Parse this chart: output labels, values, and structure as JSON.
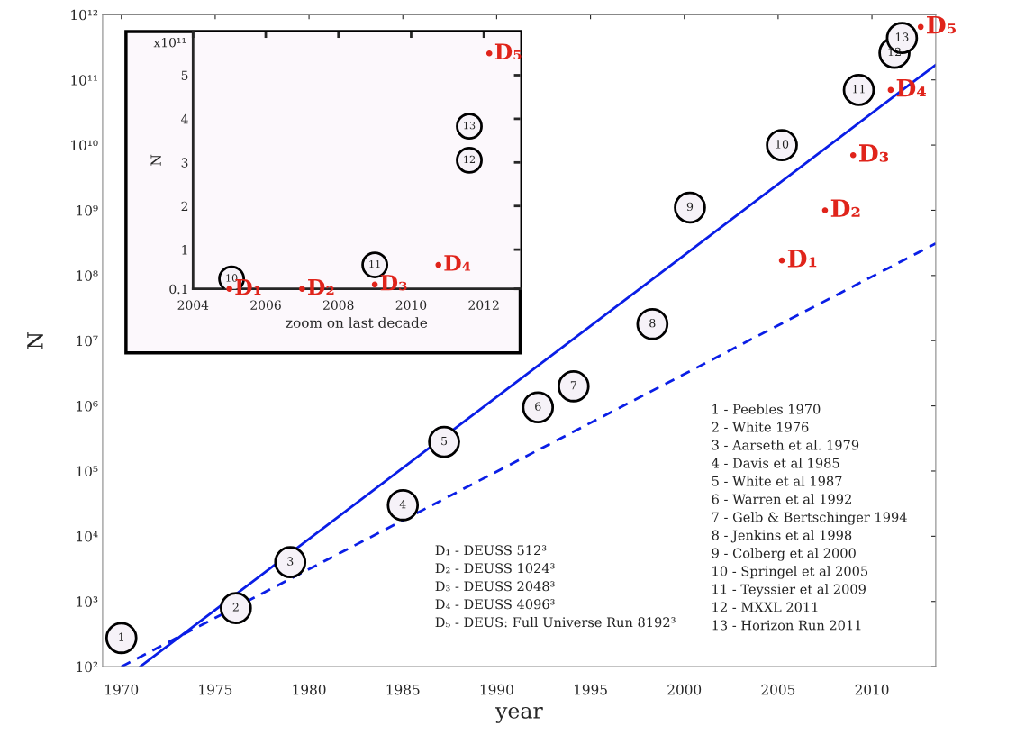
{
  "chart_data": [
    {
      "type": "scatter",
      "xlabel": "year",
      "ylabel": "N",
      "log": "y",
      "grid": false,
      "xlim": [
        1969,
        2013.4
      ],
      "xticks": [
        1970,
        1975,
        1980,
        1985,
        1990,
        1995,
        2000,
        2005,
        2010
      ],
      "ylim": [
        100,
        1000000000000
      ],
      "yticks": [
        {
          "value": 100,
          "label": "10²"
        },
        {
          "value": 1000,
          "label": "10³"
        },
        {
          "value": 10000,
          "label": "10⁴"
        },
        {
          "value": 100000,
          "label": "10⁵"
        },
        {
          "value": 1000000,
          "label": "10⁶"
        },
        {
          "value": 10000000,
          "label": "10⁷"
        },
        {
          "value": 100000000,
          "label": "10⁸"
        },
        {
          "value": 1000000000,
          "label": "10⁹"
        },
        {
          "value": 10000000000,
          "label": "10¹⁰"
        },
        {
          "value": 100000000000,
          "label": "10¹¹"
        },
        {
          "value": 1000000000000,
          "label": "10¹²"
        }
      ],
      "series": [
        {
          "type": "scatter",
          "marker": "circle",
          "color": "#e0241b",
          "x": [
            2005.2,
            2007.5,
            2009,
            2011,
            2012.6
          ],
          "values": [
            170000000,
            1000000000,
            7000000000,
            70000000000,
            650000000000
          ]
        },
        {
          "marker": "circle",
          "color": "#000000",
          "x": [
            1970,
            1976.1,
            1979,
            1985,
            1987.2,
            1992.2,
            1994.1,
            1998.3,
            2000.3,
            2005.2,
            2009.3,
            2011.2,
            2011.6
          ],
          "values": [
            275,
            790,
            4000,
            30000,
            280000,
            950000,
            2000000,
            18000000,
            1100000000,
            10000000000,
            70000000000,
            260000000000,
            440000000000
          ]
        },
        {
          "type": "line",
          "color": "#0a1ee6",
          "line_style": "solid",
          "marker": "none",
          "x": [
            1971,
            2013.4
          ],
          "values": [
            100,
            170000000000
          ]
        },
        {
          "type": "line",
          "color": "#0a1ee6",
          "line_style": "dashed",
          "marker": "none",
          "x": [
            1970,
            2013.4
          ],
          "values": [
            100,
            310000000
          ]
        }
      ],
      "annotations": [
        {
          "text": "1",
          "x": 1970,
          "y": 275
        },
        {
          "text": "2",
          "x": 1976.1,
          "y": 790
        },
        {
          "text": "3",
          "x": 1979,
          "y": 4000
        },
        {
          "text": "4",
          "x": 1985,
          "y": 30000
        },
        {
          "text": "5",
          "x": 1987.2,
          "y": 280000
        },
        {
          "text": "6",
          "x": 1992.2,
          "y": 950000
        },
        {
          "text": "7",
          "x": 1994.1,
          "y": 2000000
        },
        {
          "text": "8",
          "x": 1998.3,
          "y": 18000000
        },
        {
          "text": "9",
          "x": 2000.3,
          "y": 1100000000
        },
        {
          "text": "10",
          "x": 2005.2,
          "y": 10000000000
        },
        {
          "text": "11",
          "x": 2009.3,
          "y": 70000000000
        },
        {
          "text": "12",
          "x": 2011.2,
          "y": 260000000000
        },
        {
          "text": "13",
          "x": 2011.6,
          "y": 440000000000
        },
        {
          "text": "D₁",
          "x": 2005.2,
          "y": 170000000
        },
        {
          "text": "D₂",
          "x": 2007.5,
          "y": 1000000000
        },
        {
          "text": "D₃",
          "x": 2009,
          "y": 7000000000
        },
        {
          "text": "D₄",
          "x": 2011,
          "y": 70000000000
        },
        {
          "text": "D₅",
          "x": 2012.6,
          "y": 650000000000
        },
        "D₁ - DEUSS 512³",
        "D₂ - DEUSS 1024³",
        "D₃ - DEUSS 2048³",
        "D₄ - DEUSS 4096³",
        "D₅ - DEUS: Full Universe Run 8192³",
        "1 - Peebles 1970",
        "2 - White 1976",
        "3 - Aarseth et al. 1979",
        "4 - Davis et al 1985",
        "5 - White et al 1987",
        "6 - Warren et al 1992",
        "7 - Gelb & Bertschinger 1994",
        "8 - Jenkins et al 1998",
        "9 - Colberg et al 2000",
        "10 - Springel et al 2005",
        "11 - Teyssier et al 2009",
        "12 - MXXL 2011",
        "13 - Horizon Run 2011"
      ]
    },
    {
      "type": "scatter",
      "xlabel": "zoom on last decade",
      "ylabel": "N",
      "grid": false,
      "xlim": [
        2004,
        2013
      ],
      "xticks": [
        2004,
        2006,
        2008,
        2010,
        2012
      ],
      "ylim": [
        0.1,
        6
      ],
      "yticks": [
        0.1,
        1,
        2,
        3,
        4,
        5
      ],
      "series": [
        {
          "type": "scatter",
          "marker": "circle",
          "color": "#e0241b",
          "x": [
            2005,
            2007,
            2009,
            2010.75,
            2012.15
          ],
          "values": [
            0.1,
            0.1,
            0.2,
            0.65,
            5.5
          ]
        },
        {
          "marker": "circle",
          "color": "#000000",
          "x": [
            2005.06,
            2009,
            2011.6,
            2011.6
          ],
          "values": [
            0.33,
            0.65,
            3.05,
            3.83
          ]
        }
      ],
      "annotations": [
        "x10¹¹",
        {
          "text": "10",
          "x": 2005.06,
          "y": 0.33
        },
        {
          "text": "11",
          "x": 2009,
          "y": 0.65
        },
        {
          "text": "12",
          "x": 2011.6,
          "y": 3.05
        },
        {
          "text": "13",
          "x": 2011.6,
          "y": 3.83
        },
        {
          "text": "D₁",
          "x": 2005,
          "y": 0.1
        },
        {
          "text": "D₂",
          "x": 2007,
          "y": 0.1
        },
        {
          "text": "D₃",
          "x": 2009,
          "y": 0.2
        },
        {
          "text": "D₄",
          "x": 2010.75,
          "y": 0.65
        },
        {
          "text": "D₅",
          "x": 2012.15,
          "y": 5.5
        }
      ]
    }
  ]
}
